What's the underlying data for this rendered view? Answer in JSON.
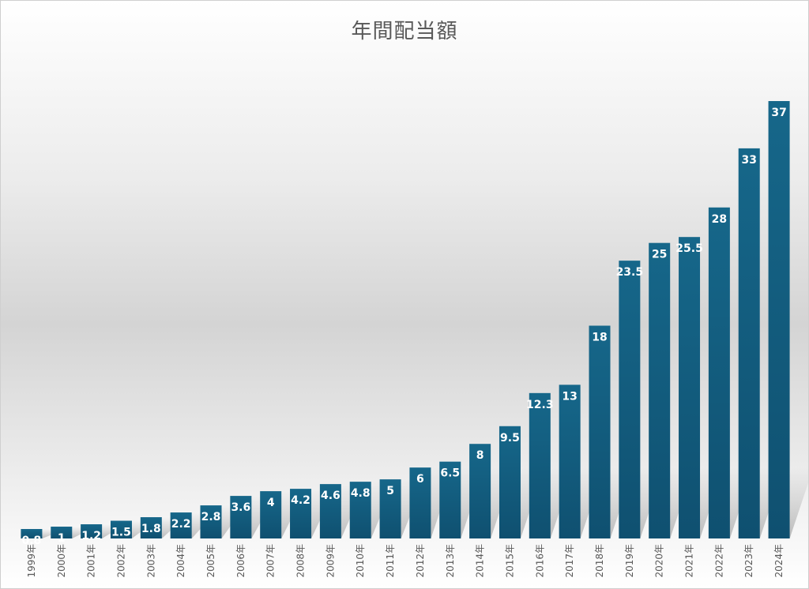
{
  "chart_data": {
    "type": "bar",
    "title": "年間配当額",
    "categories": [
      "1999年",
      "2000年",
      "2001年",
      "2002年",
      "2003年",
      "2004年",
      "2005年",
      "2006年",
      "2007年",
      "2008年",
      "2009年",
      "2010年",
      "2011年",
      "2012年",
      "2013年",
      "2014年",
      "2015年",
      "2016年",
      "2017年",
      "2018年",
      "2019年",
      "2020年",
      "2021年",
      "2022年",
      "2023年",
      "2024年"
    ],
    "values": [
      0.8,
      1,
      1.2,
      1.5,
      1.8,
      2.2,
      2.8,
      3.6,
      4,
      4.2,
      4.6,
      4.8,
      5,
      6,
      6.5,
      8,
      9.5,
      12.3,
      13,
      18,
      23.5,
      25,
      25.5,
      28,
      33,
      37
    ],
    "ylim": [
      0,
      37
    ],
    "grid": false,
    "bar_color": "#125a78",
    "bar_color_top": "#16678a",
    "data_labels": true,
    "legend": "none"
  }
}
